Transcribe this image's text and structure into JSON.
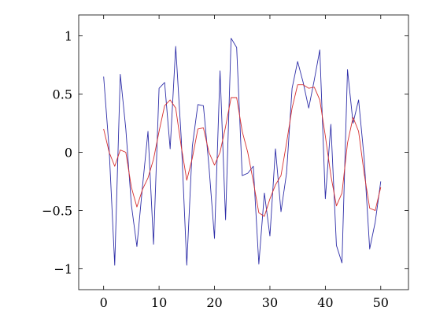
{
  "chart_data": {
    "type": "line",
    "title": "",
    "xlabel": "",
    "ylabel": "",
    "xlim": [
      -4.5,
      55
    ],
    "ylim": [
      -1.18,
      1.18
    ],
    "grid": false,
    "x_ticks": [
      {
        "value": 0,
        "label": "0"
      },
      {
        "value": 10,
        "label": "10"
      },
      {
        "value": 20,
        "label": "20"
      },
      {
        "value": 30,
        "label": "30"
      },
      {
        "value": 40,
        "label": "40"
      },
      {
        "value": 50,
        "label": "50"
      }
    ],
    "y_ticks": [
      {
        "value": 1,
        "label": "1"
      },
      {
        "value": 0.5,
        "label": "0.5"
      },
      {
        "value": 0,
        "label": "0"
      },
      {
        "value": -0.5,
        "label": "−0.5"
      },
      {
        "value": -1,
        "label": "−1"
      }
    ],
    "x": [
      0,
      1,
      2,
      3,
      4,
      5,
      6,
      7,
      8,
      9,
      10,
      11,
      12,
      13,
      14,
      15,
      16,
      17,
      18,
      19,
      20,
      21,
      22,
      23,
      24,
      25,
      26,
      27,
      28,
      29,
      30,
      31,
      32,
      33,
      34,
      35,
      36,
      37,
      38,
      39,
      40,
      41,
      42,
      43,
      44,
      45,
      46,
      47,
      48,
      49,
      50
    ],
    "series": [
      {
        "color": "#2e2ea8",
        "values": [
          0.65,
          0.02,
          -0.97,
          0.67,
          0.2,
          -0.45,
          -0.81,
          -0.3,
          0.18,
          -0.79,
          0.55,
          0.6,
          0.03,
          0.91,
          0.12,
          -0.97,
          0.05,
          0.41,
          0.4,
          -0.12,
          -0.74,
          0.7,
          -0.58,
          0.98,
          0.9,
          -0.2,
          -0.18,
          -0.12,
          -0.96,
          -0.35,
          -0.72,
          0.03,
          -0.51,
          -0.18,
          0.55,
          0.78,
          0.6,
          0.38,
          0.62,
          0.88,
          -0.4,
          0.24,
          -0.8,
          -0.95,
          0.71,
          0.25,
          0.45,
          -0.05,
          -0.83,
          -0.6,
          -0.25
        ]
      },
      {
        "color": "#d62f2f",
        "values": [
          0.2,
          0.0,
          -0.12,
          0.02,
          0.0,
          -0.3,
          -0.47,
          -0.32,
          -0.22,
          -0.06,
          0.18,
          0.4,
          0.45,
          0.38,
          0.05,
          -0.24,
          -0.05,
          0.2,
          0.21,
          0.0,
          -0.11,
          0.0,
          0.22,
          0.47,
          0.47,
          0.18,
          0.0,
          -0.25,
          -0.52,
          -0.55,
          -0.4,
          -0.28,
          -0.2,
          0.08,
          0.38,
          0.58,
          0.58,
          0.55,
          0.56,
          0.45,
          0.14,
          -0.2,
          -0.46,
          -0.35,
          0.08,
          0.3,
          0.18,
          -0.18,
          -0.48,
          -0.5,
          -0.3
        ]
      }
    ]
  }
}
